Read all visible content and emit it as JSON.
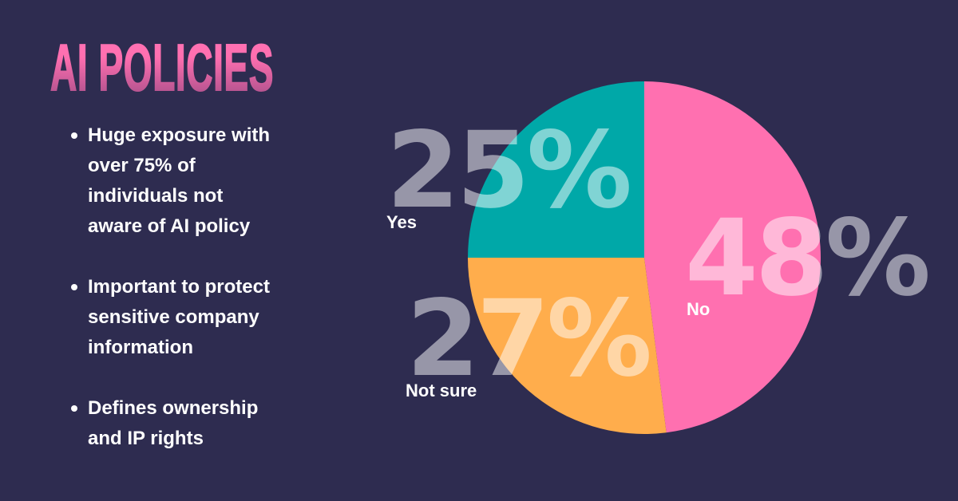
{
  "title": "AI POLICIES",
  "bullets": [
    {
      "lines": [
        "Huge exposure with",
        "over 75% of",
        "individuals not",
        "aware of AI policy"
      ]
    },
    {
      "lines": [
        "Important to protect",
        "sensitive company",
        "information"
      ]
    },
    {
      "lines": [
        "Defines ownership",
        "and IP rights"
      ]
    }
  ],
  "colors": {
    "background": "#2e2c50",
    "title_top": "#ff72b4",
    "title_bottom": "#a04c86",
    "yes": "#00a8a8",
    "not_sure": "#ffad4c",
    "no": "#ff70b0"
  },
  "chart_data": {
    "type": "pie",
    "title": "",
    "categories": [
      "No",
      "Not sure",
      "Yes"
    ],
    "values": [
      48,
      27,
      25
    ],
    "units": "%",
    "colors": [
      "#ff70b0",
      "#ffad4c",
      "#00a8a8"
    ],
    "start_angle_deg": 0,
    "direction": "clockwise",
    "labels": [
      {
        "category": "Yes",
        "value_text": "25%",
        "label": "Yes"
      },
      {
        "category": "Not sure",
        "value_text": "27%",
        "label": "Not sure"
      },
      {
        "category": "No",
        "value_text": "48%",
        "label": "No"
      }
    ],
    "legend": "none"
  }
}
